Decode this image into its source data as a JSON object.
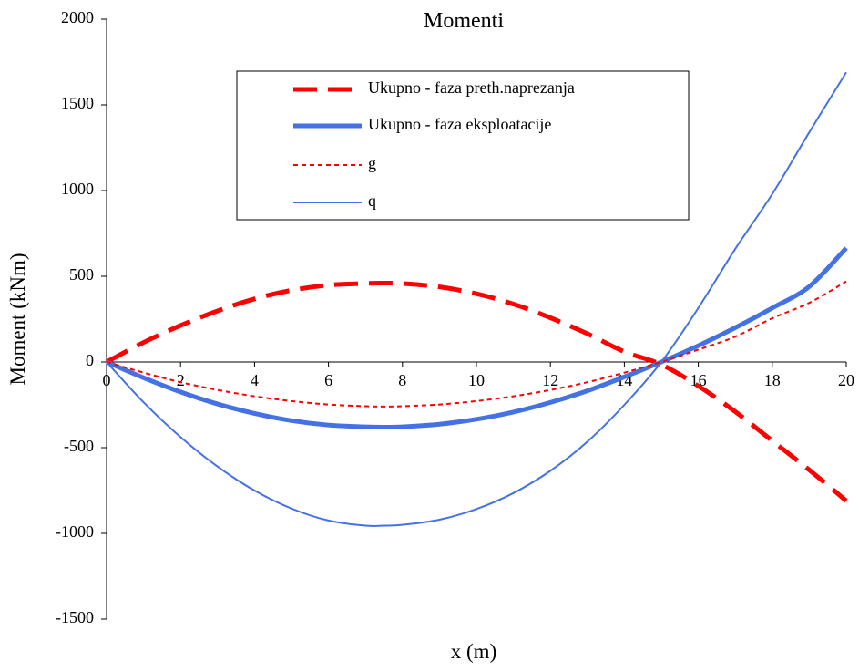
{
  "chart_data": {
    "type": "line",
    "title": "Momenti",
    "xlabel": "x (m)",
    "ylabel": "Moment (kNm)",
    "xlim": [
      0,
      20
    ],
    "ylim": [
      -1500,
      2000
    ],
    "x_ticks": [
      "0",
      "2",
      "4",
      "6",
      "8",
      "10",
      "12",
      "14",
      "16",
      "18",
      "20"
    ],
    "y_ticks": [
      "2000",
      "1500",
      "1000",
      "500",
      "0",
      "-500",
      "-1000",
      "-1500"
    ],
    "grid": false,
    "legend_position": "top-center",
    "x": [
      0,
      1,
      2,
      3,
      4,
      5,
      6,
      7,
      7.5,
      8,
      9,
      10,
      11,
      12,
      13,
      14,
      15,
      16,
      17,
      18,
      19,
      20
    ],
    "series": [
      {
        "name": "Ukupno - faza preth.naprezanja",
        "color": "#ff0000",
        "style": "dashed-thick",
        "values": [
          0,
          114,
          213,
          298,
          368,
          418,
          448,
          458,
          460,
          458,
          438,
          398,
          338,
          258,
          165,
          60,
          -15,
          -140,
          -290,
          -460,
          -630,
          -810
        ]
      },
      {
        "name": "Ukupno - faza eksploatacije",
        "color": "#4472e4",
        "style": "solid-thick",
        "values": [
          0,
          -92,
          -175,
          -245,
          -300,
          -342,
          -368,
          -378,
          -380,
          -378,
          -363,
          -334,
          -292,
          -236,
          -168,
          -87,
          0,
          95,
          200,
          315,
          440,
          665
        ]
      },
      {
        "name": "g",
        "color": "#ff0000",
        "style": "dotted",
        "values": [
          0,
          -62,
          -118,
          -163,
          -200,
          -228,
          -248,
          -258,
          -260,
          -258,
          -248,
          -228,
          -200,
          -163,
          -118,
          -62,
          0,
          72,
          148,
          255,
          345,
          470
        ]
      },
      {
        "name": "q",
        "color": "#4472e4",
        "style": "solid-thin",
        "values": [
          0,
          -235,
          -438,
          -610,
          -750,
          -855,
          -925,
          -955,
          -955,
          -950,
          -920,
          -858,
          -765,
          -635,
          -465,
          -250,
          0,
          315,
          660,
          980,
          1340,
          1690
        ]
      }
    ]
  }
}
